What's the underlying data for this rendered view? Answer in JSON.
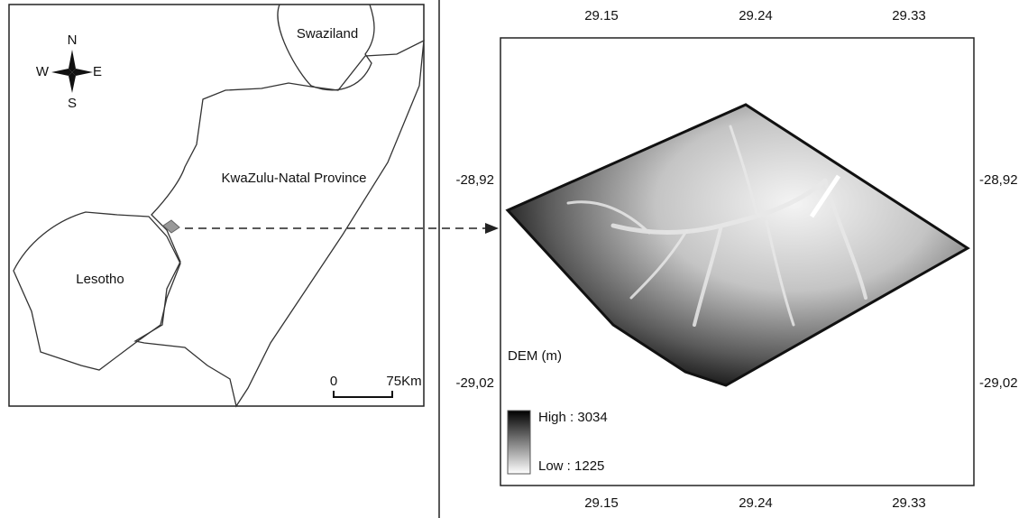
{
  "left_map": {
    "compass": {
      "north": "N",
      "south": "S",
      "east": "E",
      "west": "W"
    },
    "labels": {
      "swaziland": "Swaziland",
      "province": "KwaZulu-Natal Province",
      "lesotho": "Lesotho"
    },
    "scale_bar": {
      "start": "0",
      "end": "75Km"
    }
  },
  "right_map": {
    "top_ticks": [
      "29.15",
      "29.24",
      "29.33"
    ],
    "bottom_ticks": [
      "29.15",
      "29.24",
      "29.33"
    ],
    "left_ticks": [
      "-28,92",
      "-29,02"
    ],
    "right_ticks": [
      "-28,92",
      "-29,02"
    ],
    "legend": {
      "title": "DEM (m)",
      "high": "High : 3034",
      "low": "Low : 1225"
    }
  }
}
